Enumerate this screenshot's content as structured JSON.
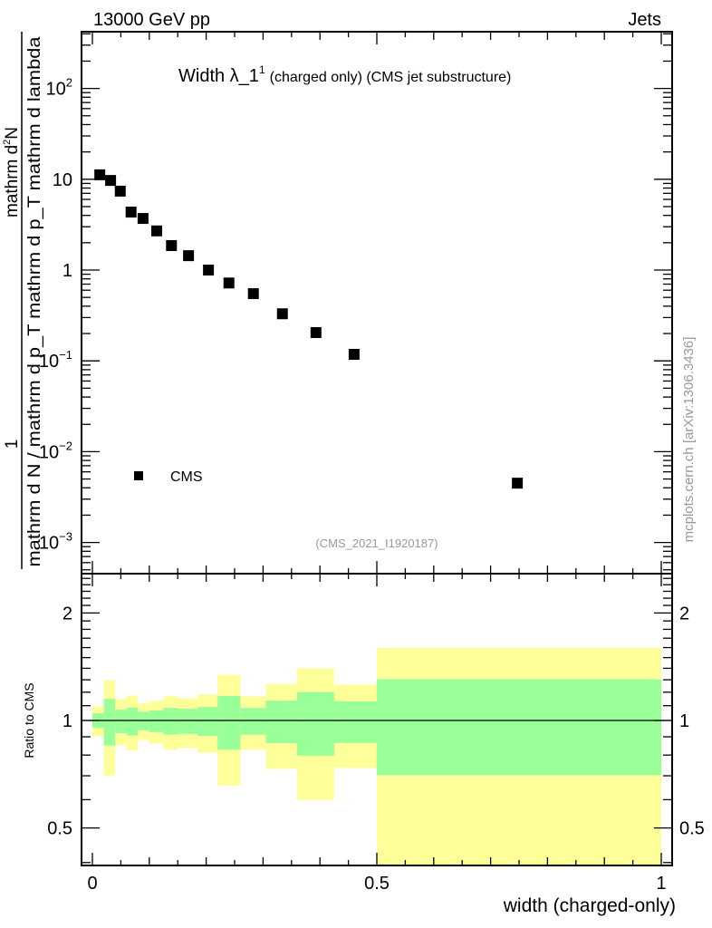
{
  "chart_data": {
    "type": "scatter",
    "header_left": "13000 GeV pp",
    "header_right": "Jets",
    "title_main": "Width λ_1",
    "title_sup": "1",
    "title_rest": "(charged only) (CMS jet substructure)",
    "ylabel_numerator_1": "mathrm d",
    "ylabel_numerator_sup": "2",
    "ylabel_numerator_2": "N",
    "ylabel_left_num": "1",
    "ylabel_denominator": "mathrm d N / mathrm d p_T mathrm d p_T mathrm d lambda",
    "xlabel": "width (charged-only)",
    "ratio_ylabel": "Ratio to CMS",
    "side_label": "mcplots.cern.ch [arXiv:1306.3436]",
    "watermark": "(CMS_2021_I1920187)",
    "legend": [
      {
        "label": "CMS",
        "marker": "square",
        "color": "#000000"
      }
    ],
    "legend_position": "bottom-left",
    "xlim": [
      0,
      1
    ],
    "ylim": [
      0.00043,
      415
    ],
    "yscale": "log",
    "x_tick_labels": [
      "0",
      "0.5",
      "1"
    ],
    "y_tick_labels": [
      "10^-3",
      "10^-2",
      "10^-1",
      "1",
      "10",
      "10^2"
    ],
    "series": [
      {
        "name": "CMS",
        "x": [
          0.013,
          0.032,
          0.049,
          0.068,
          0.089,
          0.113,
          0.139,
          0.169,
          0.204,
          0.24,
          0.283,
          0.334,
          0.393,
          0.46,
          0.747
        ],
        "y": [
          11.2,
          9.7,
          7.4,
          4.35,
          3.7,
          2.7,
          1.86,
          1.44,
          1.0,
          0.72,
          0.55,
          0.33,
          0.205,
          0.118,
          0.0045
        ]
      }
    ],
    "ratio": {
      "ylim": [
        0.39,
        2.55
      ],
      "yscale": "log",
      "y_tick_labels": [
        "0.5",
        "1",
        "2"
      ],
      "reference": 1,
      "bin_edges": [
        0,
        0.02,
        0.04,
        0.06,
        0.08,
        0.1,
        0.125,
        0.15,
        0.185,
        0.22,
        0.26,
        0.305,
        0.36,
        0.425,
        0.5,
        1.0
      ],
      "green_band": {
        "color": "#99ff99",
        "low": [
          0.953,
          0.851,
          0.922,
          0.908,
          0.938,
          0.928,
          0.913,
          0.917,
          0.905,
          0.828,
          0.912,
          0.864,
          0.797,
          0.865,
          0.703
        ],
        "high": [
          1.047,
          1.149,
          1.072,
          1.086,
          1.058,
          1.066,
          1.084,
          1.078,
          1.09,
          1.171,
          1.084,
          1.136,
          1.201,
          1.131,
          1.304
        ]
      },
      "yellow_band": {
        "color": "#ffff99",
        "low": [
          0.903,
          0.702,
          0.852,
          0.823,
          0.881,
          0.862,
          0.828,
          0.838,
          0.812,
          0.657,
          0.828,
          0.732,
          0.599,
          0.736,
          0.35
        ],
        "high": [
          1.095,
          1.297,
          1.147,
          1.175,
          1.116,
          1.134,
          1.169,
          1.155,
          1.182,
          1.342,
          1.169,
          1.267,
          1.398,
          1.26,
          1.597
        ]
      }
    }
  }
}
